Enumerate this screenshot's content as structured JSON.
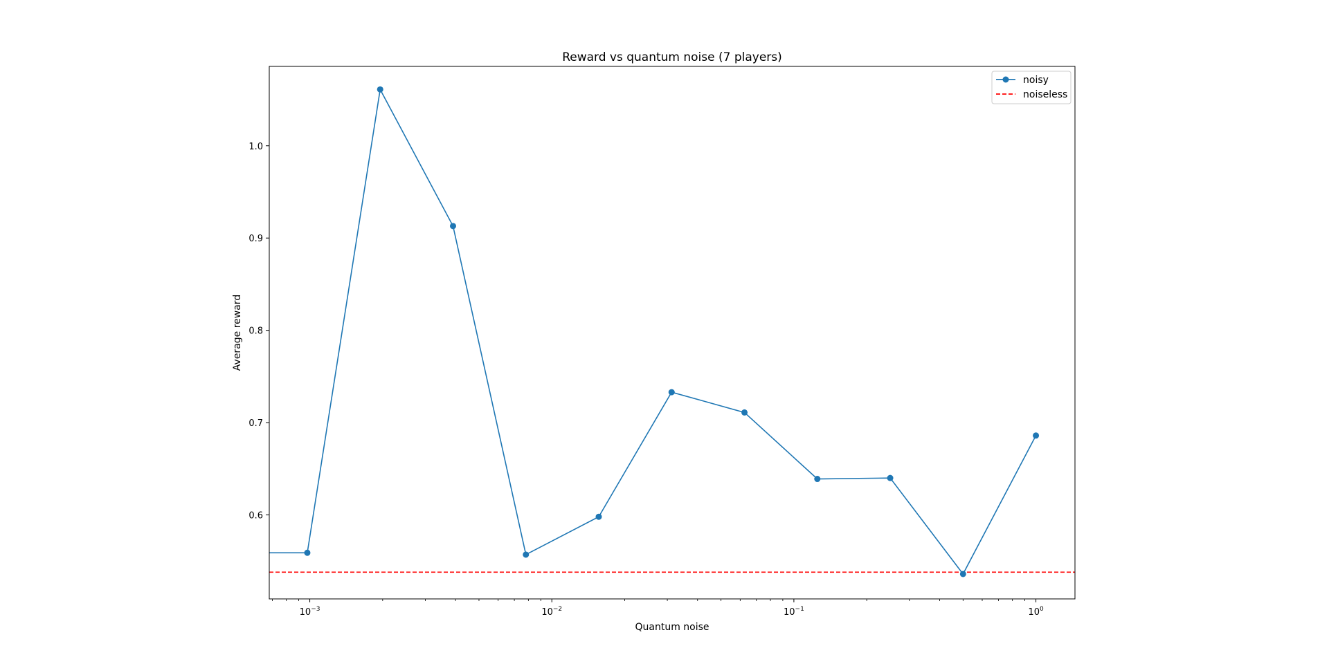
{
  "chart_data": {
    "type": "line",
    "title": "Reward vs quantum noise (7 players)",
    "xlabel": "Quantum noise",
    "ylabel": "Average reward",
    "xscale": "log",
    "xlim": [
      0.00068,
      1.45
    ],
    "ylim": [
      0.509,
      1.086
    ],
    "xticks": [
      {
        "value": 0.001,
        "base": "10",
        "exp": "−3"
      },
      {
        "value": 0.01,
        "base": "10",
        "exp": "−2"
      },
      {
        "value": 0.1,
        "base": "10",
        "exp": "−1"
      },
      {
        "value": 1,
        "base": "10",
        "exp": "0"
      }
    ],
    "yticks": [
      {
        "value": 0.6,
        "label": "0.6"
      },
      {
        "value": 0.7,
        "label": "0.7"
      },
      {
        "value": 0.8,
        "label": "0.8"
      },
      {
        "value": 0.9,
        "label": "0.9"
      },
      {
        "value": 1.0,
        "label": "1.0"
      }
    ],
    "series": [
      {
        "name": "noisy",
        "color": "#1f77b4",
        "style": "solid",
        "marker": "circle",
        "x": [
          0,
          0.0009765625,
          0.001953125,
          0.00390625,
          0.0078125,
          0.015625,
          0.03125,
          0.0625,
          0.125,
          0.25,
          0.5,
          1.0
        ],
        "y": [
          0.559,
          0.559,
          1.061,
          0.913,
          0.557,
          0.598,
          0.733,
          0.711,
          0.639,
          0.64,
          0.536,
          0.686
        ]
      },
      {
        "name": "noiseless",
        "color": "#ff0000",
        "style": "dashed",
        "marker": "none",
        "y_constant": 0.538
      }
    ],
    "legend_position": "top-right",
    "grid": false
  }
}
